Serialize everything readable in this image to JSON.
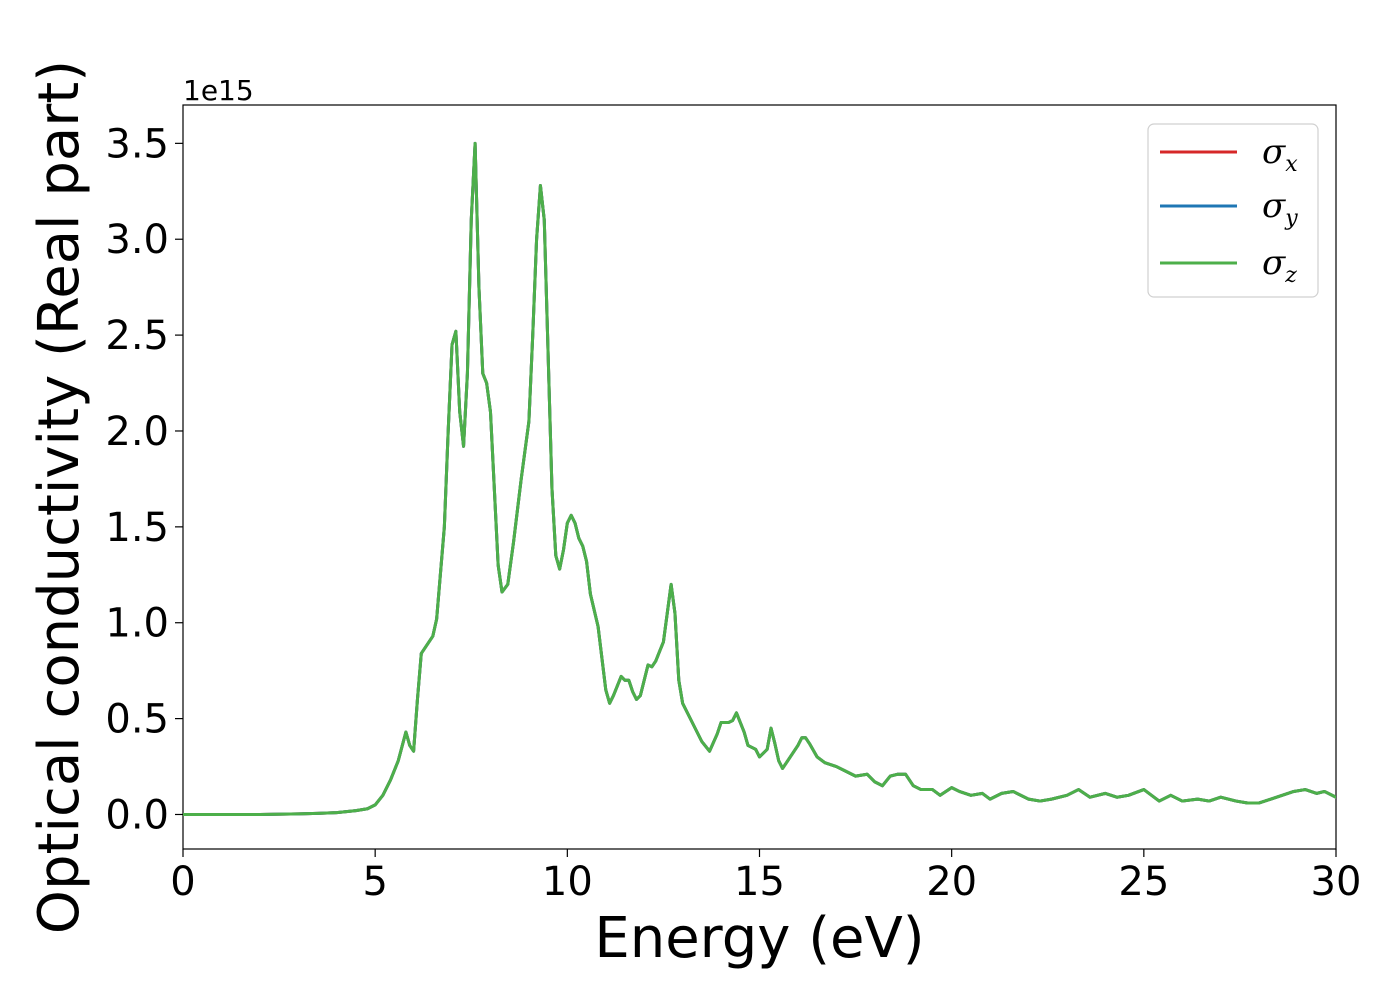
{
  "chart_data": {
    "type": "line",
    "xlabel": "Energy (eV)",
    "ylabel": "Optical conductivity (Real part)",
    "offset_text": "1e15",
    "scale_factor": 1000000000000000.0,
    "xlim": [
      0,
      30
    ],
    "ylim": [
      -0.18,
      3.7
    ],
    "xticks": [
      0,
      5,
      10,
      15,
      20,
      25,
      30
    ],
    "yticks": [
      0.0,
      0.5,
      1.0,
      1.5,
      2.0,
      2.5,
      3.0,
      3.5
    ],
    "xtick_labels": [
      "0",
      "5",
      "10",
      "15",
      "20",
      "25",
      "30"
    ],
    "ytick_labels": [
      "0.0",
      "0.5",
      "1.0",
      "1.5",
      "2.0",
      "2.5",
      "3.0",
      "3.5"
    ],
    "grid": false,
    "legend_position": "top-right",
    "x": [
      0,
      1,
      2,
      3,
      3.5,
      4,
      4.5,
      4.8,
      5.0,
      5.2,
      5.4,
      5.6,
      5.8,
      5.9,
      6.0,
      6.1,
      6.2,
      6.3,
      6.4,
      6.5,
      6.6,
      6.8,
      6.9,
      7.0,
      7.1,
      7.2,
      7.3,
      7.4,
      7.5,
      7.6,
      7.7,
      7.8,
      7.9,
      8.0,
      8.1,
      8.2,
      8.3,
      8.45,
      8.6,
      8.8,
      9.0,
      9.1,
      9.2,
      9.3,
      9.4,
      9.5,
      9.6,
      9.7,
      9.8,
      9.9,
      10.0,
      10.1,
      10.2,
      10.3,
      10.4,
      10.5,
      10.6,
      10.8,
      11.0,
      11.1,
      11.2,
      11.4,
      11.5,
      11.6,
      11.7,
      11.8,
      11.9,
      12.0,
      12.1,
      12.2,
      12.3,
      12.4,
      12.5,
      12.6,
      12.7,
      12.8,
      12.9,
      13.0,
      13.2,
      13.5,
      13.7,
      13.9,
      14.0,
      14.2,
      14.3,
      14.4,
      14.5,
      14.6,
      14.7,
      14.9,
      15.0,
      15.2,
      15.3,
      15.4,
      15.5,
      15.6,
      15.8,
      16.0,
      16.1,
      16.2,
      16.3,
      16.5,
      16.7,
      17.0,
      17.2,
      17.5,
      17.8,
      18.0,
      18.2,
      18.4,
      18.6,
      18.8,
      19.0,
      19.2,
      19.5,
      19.7,
      20.0,
      20.2,
      20.5,
      20.8,
      21.0,
      21.3,
      21.6,
      22.0,
      22.3,
      22.6,
      23.0,
      23.3,
      23.6,
      24.0,
      24.3,
      24.6,
      25.0,
      25.4,
      25.7,
      26.0,
      26.4,
      26.7,
      27.0,
      27.4,
      27.7,
      28.0,
      28.3,
      28.6,
      28.9,
      29.2,
      29.5,
      29.7,
      30.0
    ],
    "series": [
      {
        "name": "σx",
        "color": "#d62728",
        "values": [
          0.0,
          0.0,
          0.0,
          0.003,
          0.006,
          0.01,
          0.02,
          0.03,
          0.05,
          0.1,
          0.18,
          0.28,
          0.43,
          0.36,
          0.33,
          0.6,
          0.84,
          0.87,
          0.9,
          0.93,
          1.02,
          1.5,
          2.0,
          2.45,
          2.52,
          2.1,
          1.92,
          2.3,
          3.1,
          3.5,
          2.75,
          2.3,
          2.25,
          2.1,
          1.7,
          1.3,
          1.16,
          1.2,
          1.42,
          1.75,
          2.05,
          2.5,
          3.0,
          3.28,
          3.1,
          2.4,
          1.7,
          1.35,
          1.28,
          1.38,
          1.52,
          1.56,
          1.52,
          1.44,
          1.4,
          1.32,
          1.15,
          0.98,
          0.65,
          0.58,
          0.62,
          0.72,
          0.7,
          0.7,
          0.64,
          0.6,
          0.62,
          0.7,
          0.78,
          0.77,
          0.8,
          0.85,
          0.9,
          1.05,
          1.2,
          1.05,
          0.7,
          0.58,
          0.5,
          0.38,
          0.33,
          0.42,
          0.48,
          0.48,
          0.49,
          0.53,
          0.48,
          0.43,
          0.36,
          0.34,
          0.3,
          0.34,
          0.45,
          0.37,
          0.28,
          0.24,
          0.3,
          0.36,
          0.4,
          0.4,
          0.37,
          0.3,
          0.27,
          0.25,
          0.23,
          0.2,
          0.21,
          0.17,
          0.15,
          0.2,
          0.21,
          0.21,
          0.15,
          0.13,
          0.13,
          0.1,
          0.14,
          0.12,
          0.1,
          0.11,
          0.08,
          0.11,
          0.12,
          0.08,
          0.07,
          0.08,
          0.1,
          0.13,
          0.09,
          0.11,
          0.09,
          0.1,
          0.13,
          0.07,
          0.1,
          0.07,
          0.08,
          0.07,
          0.09,
          0.07,
          0.06,
          0.06,
          0.08,
          0.1,
          0.12,
          0.13,
          0.11,
          0.12,
          0.09
        ]
      },
      {
        "name": "σy",
        "color": "#1f77b4",
        "values": [
          0.0,
          0.0,
          0.0,
          0.003,
          0.006,
          0.01,
          0.02,
          0.03,
          0.05,
          0.1,
          0.18,
          0.28,
          0.43,
          0.36,
          0.33,
          0.6,
          0.84,
          0.87,
          0.9,
          0.93,
          1.02,
          1.5,
          2.0,
          2.45,
          2.52,
          2.1,
          1.92,
          2.3,
          3.1,
          3.5,
          2.75,
          2.3,
          2.25,
          2.1,
          1.7,
          1.3,
          1.16,
          1.2,
          1.42,
          1.75,
          2.05,
          2.5,
          3.0,
          3.28,
          3.1,
          2.4,
          1.7,
          1.35,
          1.28,
          1.38,
          1.52,
          1.56,
          1.52,
          1.44,
          1.4,
          1.32,
          1.15,
          0.98,
          0.65,
          0.58,
          0.62,
          0.72,
          0.7,
          0.7,
          0.64,
          0.6,
          0.62,
          0.7,
          0.78,
          0.77,
          0.8,
          0.85,
          0.9,
          1.05,
          1.2,
          1.05,
          0.7,
          0.58,
          0.5,
          0.38,
          0.33,
          0.42,
          0.48,
          0.48,
          0.49,
          0.53,
          0.48,
          0.43,
          0.36,
          0.34,
          0.3,
          0.34,
          0.45,
          0.37,
          0.28,
          0.24,
          0.3,
          0.36,
          0.4,
          0.4,
          0.37,
          0.3,
          0.27,
          0.25,
          0.23,
          0.2,
          0.21,
          0.17,
          0.15,
          0.2,
          0.21,
          0.21,
          0.15,
          0.13,
          0.13,
          0.1,
          0.14,
          0.12,
          0.1,
          0.11,
          0.08,
          0.11,
          0.12,
          0.08,
          0.07,
          0.08,
          0.1,
          0.13,
          0.09,
          0.11,
          0.09,
          0.1,
          0.13,
          0.07,
          0.1,
          0.07,
          0.08,
          0.07,
          0.09,
          0.07,
          0.06,
          0.06,
          0.08,
          0.1,
          0.12,
          0.13,
          0.11,
          0.12,
          0.09
        ]
      },
      {
        "name": "σz",
        "color": "#4daf4a",
        "values": [
          0.0,
          0.0,
          0.0,
          0.003,
          0.006,
          0.01,
          0.02,
          0.03,
          0.05,
          0.1,
          0.18,
          0.28,
          0.43,
          0.36,
          0.33,
          0.6,
          0.84,
          0.87,
          0.9,
          0.93,
          1.02,
          1.5,
          2.0,
          2.45,
          2.52,
          2.1,
          1.92,
          2.3,
          3.1,
          3.5,
          2.75,
          2.3,
          2.25,
          2.1,
          1.7,
          1.3,
          1.16,
          1.2,
          1.42,
          1.75,
          2.05,
          2.5,
          3.0,
          3.28,
          3.1,
          2.4,
          1.7,
          1.35,
          1.28,
          1.38,
          1.52,
          1.56,
          1.52,
          1.44,
          1.4,
          1.32,
          1.15,
          0.98,
          0.65,
          0.58,
          0.62,
          0.72,
          0.7,
          0.7,
          0.64,
          0.6,
          0.62,
          0.7,
          0.78,
          0.77,
          0.8,
          0.85,
          0.9,
          1.05,
          1.2,
          1.05,
          0.7,
          0.58,
          0.5,
          0.38,
          0.33,
          0.42,
          0.48,
          0.48,
          0.49,
          0.53,
          0.48,
          0.43,
          0.36,
          0.34,
          0.3,
          0.34,
          0.45,
          0.37,
          0.28,
          0.24,
          0.3,
          0.36,
          0.4,
          0.4,
          0.37,
          0.3,
          0.27,
          0.25,
          0.23,
          0.2,
          0.21,
          0.17,
          0.15,
          0.2,
          0.21,
          0.21,
          0.15,
          0.13,
          0.13,
          0.1,
          0.14,
          0.12,
          0.1,
          0.11,
          0.08,
          0.11,
          0.12,
          0.08,
          0.07,
          0.08,
          0.1,
          0.13,
          0.09,
          0.11,
          0.09,
          0.1,
          0.13,
          0.07,
          0.1,
          0.07,
          0.08,
          0.07,
          0.09,
          0.07,
          0.06,
          0.06,
          0.08,
          0.1,
          0.12,
          0.13,
          0.11,
          0.12,
          0.09
        ]
      }
    ],
    "legend": [
      {
        "symbol": "σ",
        "subscript": "x",
        "color": "#d62728"
      },
      {
        "symbol": "σ",
        "subscript": "y",
        "color": "#1f77b4"
      },
      {
        "symbol": "σ",
        "subscript": "z",
        "color": "#4daf4a"
      }
    ]
  }
}
